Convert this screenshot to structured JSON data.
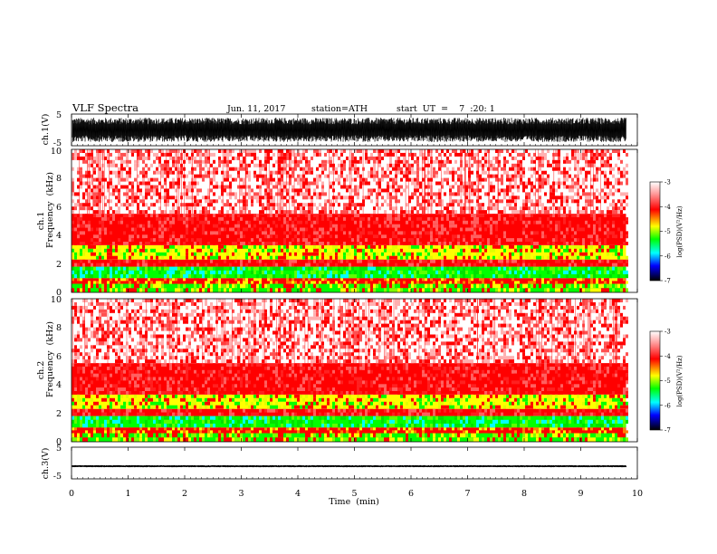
{
  "header": {
    "title": "VLF  Spectra",
    "date": "Jun. 11, 2017",
    "station": "station=ATH",
    "start_ut": "start  UT  =    7  :20: 1"
  },
  "colors": {
    "spectrogram_scale": [
      "#000000",
      "#0000ff",
      "#00ffff",
      "#00ff00",
      "#ffff00",
      "#ff0000",
      "#ffffff"
    ],
    "waveform": "#000000"
  },
  "chart_data": [
    {
      "id": "ch1-waveform",
      "type": "line",
      "ylabel": "ch.1(V)",
      "ylim": [
        -5,
        5
      ],
      "yticks": [
        "5",
        "-5"
      ],
      "xlim": [
        0,
        10
      ],
      "data_extent_min": 9.8,
      "envelope_v": [
        -3.8,
        3.8
      ]
    },
    {
      "id": "ch1-spectrogram",
      "type": "heatmap",
      "ylabel_line1": "ch.1",
      "ylabel_line2": "Frequency  (kHz)",
      "ylim": [
        0,
        10
      ],
      "yticks": [
        "0",
        "2",
        "4",
        "6",
        "8",
        "10"
      ],
      "xlim": [
        0,
        10
      ],
      "data_extent_min": 9.8,
      "bands_khz": [
        {
          "from": 0.0,
          "to": 0.6,
          "psd": "green/yellow"
        },
        {
          "from": 0.6,
          "to": 1.0,
          "psd": "red/yellow"
        },
        {
          "from": 1.0,
          "to": 1.8,
          "psd": "green/cyan"
        },
        {
          "from": 1.8,
          "to": 2.3,
          "psd": "red"
        },
        {
          "from": 2.3,
          "to": 3.3,
          "psd": "yellow/green"
        },
        {
          "from": 3.3,
          "to": 5.5,
          "psd": "red"
        },
        {
          "from": 5.5,
          "to": 10.0,
          "psd": "red/white"
        }
      ],
      "colorbar": {
        "ticks": [
          "-3",
          "-4",
          "-5",
          "-6",
          "-7"
        ],
        "label": "log(PSD)(V²/Hz)",
        "range": [
          -7,
          -3
        ]
      }
    },
    {
      "id": "ch2-spectrogram",
      "type": "heatmap",
      "ylabel_line1": "ch.2",
      "ylabel_line2": "Frequency  (kHz)",
      "ylim": [
        0,
        10
      ],
      "yticks": [
        "0",
        "2",
        "4",
        "6",
        "8",
        "10"
      ],
      "xlim": [
        0,
        10
      ],
      "data_extent_min": 9.8,
      "bands_khz": [
        {
          "from": 0.0,
          "to": 0.6,
          "psd": "green/yellow"
        },
        {
          "from": 0.6,
          "to": 1.0,
          "psd": "red/yellow"
        },
        {
          "from": 1.0,
          "to": 1.8,
          "psd": "green/cyan"
        },
        {
          "from": 1.8,
          "to": 2.3,
          "psd": "red"
        },
        {
          "from": 2.3,
          "to": 3.3,
          "psd": "yellow/green"
        },
        {
          "from": 3.3,
          "to": 5.5,
          "psd": "red"
        },
        {
          "from": 5.5,
          "to": 10.0,
          "psd": "red/white"
        }
      ],
      "colorbar": {
        "ticks": [
          "-3",
          "-4",
          "-5",
          "-6",
          "-7"
        ],
        "label": "log(PSD)(V²/Hz)",
        "range": [
          -7,
          -3
        ]
      }
    },
    {
      "id": "ch3-waveform",
      "type": "line",
      "ylabel": "ch.3(V)",
      "ylim": [
        -5,
        5
      ],
      "yticks": [
        "5",
        "-5"
      ],
      "xlim": [
        0,
        10
      ],
      "data_extent_min": 9.8,
      "level_v": -1.0,
      "envelope_v": [
        -1.3,
        -0.7
      ],
      "xlabel": "Time  (min)",
      "xticks": [
        "0",
        "1",
        "2",
        "3",
        "4",
        "5",
        "6",
        "7",
        "8",
        "9",
        "10"
      ]
    }
  ]
}
